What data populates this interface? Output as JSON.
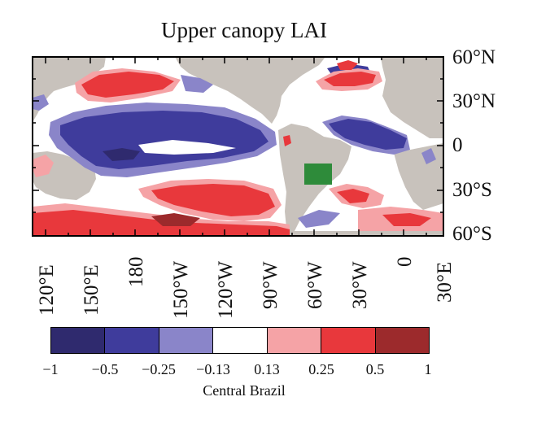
{
  "figure": {
    "title": "Upper canopy LAI",
    "caption": "Central Brazil"
  },
  "map": {
    "lat_labels": [
      "60°N",
      "30°N",
      "0",
      "30°S",
      "60°S"
    ],
    "lon_labels": [
      "120°E",
      "150°E",
      "180",
      "150°W",
      "120°W",
      "90°W",
      "60°W",
      "30°W",
      "0",
      "30°E"
    ],
    "region_box": {
      "name": "Central Brazil",
      "lon_range": [
        "65°W",
        "50°W"
      ],
      "lat_range": [
        "25°S",
        "15°S"
      ],
      "color": "#2e8b3a"
    },
    "land_color": "#c8c2bc",
    "ocean_neutral_color": "#ffffff"
  },
  "legend": {
    "colors": [
      "#2f2a6e",
      "#3f3c9c",
      "#8a85c9",
      "#ffffff",
      "#f5a3a6",
      "#e8383c",
      "#9c2a2c"
    ],
    "ticks": [
      "-1",
      "-0.5",
      "-0.25",
      "-0.13",
      "0.13",
      "0.25",
      "0.5",
      "1"
    ]
  }
}
